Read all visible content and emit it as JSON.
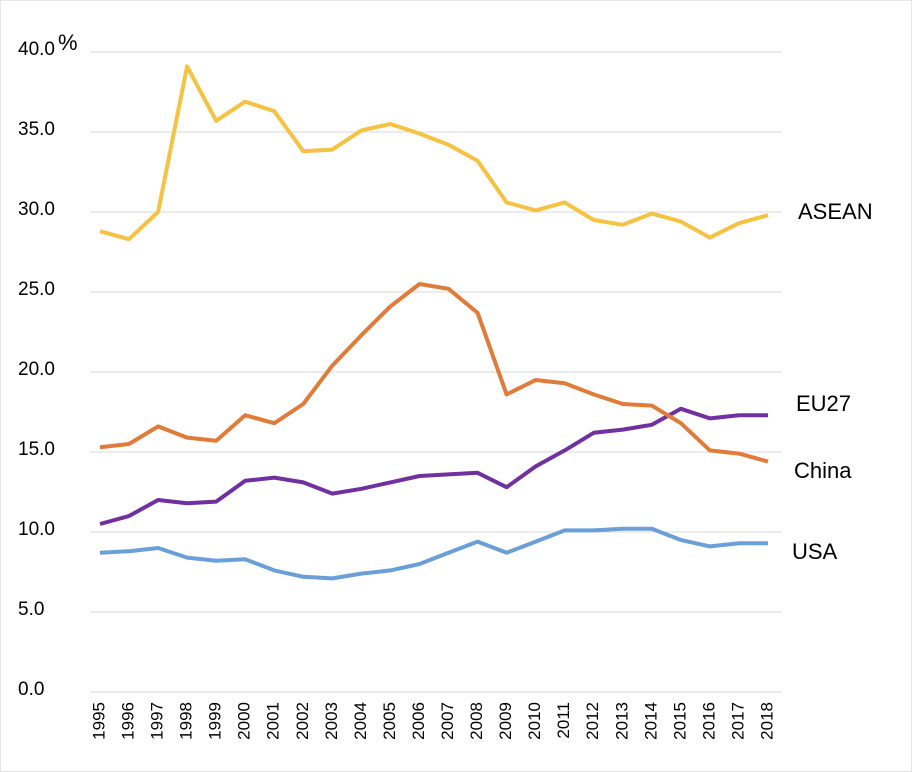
{
  "chart_data": {
    "type": "line",
    "y_unit": "%",
    "categories": [
      "1995",
      "1996",
      "1997",
      "1998",
      "1999",
      "2000",
      "2001",
      "2002",
      "2003",
      "2004",
      "2005",
      "2006",
      "2007",
      "2008",
      "2009",
      "2010",
      "2011",
      "2012",
      "2013",
      "2014",
      "2015",
      "2016",
      "2017",
      "2018"
    ],
    "series": [
      {
        "name": "ASEAN",
        "color": "#f5c242",
        "values": [
          28.8,
          28.3,
          30.0,
          39.1,
          35.7,
          36.9,
          36.3,
          33.8,
          33.9,
          35.1,
          35.5,
          34.9,
          34.2,
          33.2,
          30.6,
          30.1,
          30.6,
          29.5,
          29.2,
          29.9,
          29.4,
          28.4,
          29.3,
          29.8
        ]
      },
      {
        "name": "EU27",
        "color": "#7030a0",
        "values": [
          10.5,
          11.0,
          12.0,
          11.8,
          11.9,
          13.2,
          13.4,
          13.1,
          12.4,
          12.7,
          13.1,
          13.5,
          13.6,
          13.7,
          12.8,
          14.1,
          15.1,
          16.2,
          16.4,
          16.7,
          17.7,
          17.1,
          17.3,
          17.3
        ]
      },
      {
        "name": "China",
        "color": "#e07b39",
        "values": [
          15.3,
          15.5,
          16.6,
          15.9,
          15.7,
          17.3,
          16.8,
          18.0,
          20.4,
          22.3,
          24.1,
          25.5,
          25.2,
          23.7,
          18.6,
          19.5,
          19.3,
          18.6,
          18.0,
          17.9,
          16.8,
          15.1,
          14.9,
          14.4
        ]
      },
      {
        "name": "USA",
        "color": "#6a9fd8",
        "values": [
          8.7,
          8.8,
          9.0,
          8.4,
          8.2,
          8.3,
          7.6,
          7.2,
          7.1,
          7.4,
          7.6,
          8.0,
          8.7,
          9.4,
          8.7,
          9.4,
          10.1,
          10.1,
          10.2,
          10.2,
          9.5,
          9.1,
          9.3,
          9.3
        ]
      }
    ],
    "ylim": [
      0,
      40
    ],
    "yticks": [
      {
        "value": 0,
        "label": "0.0"
      },
      {
        "value": 5,
        "label": "5.0"
      },
      {
        "value": 10,
        "label": "10.0"
      },
      {
        "value": 15,
        "label": "15.0"
      },
      {
        "value": 20,
        "label": "20.0"
      },
      {
        "value": 25,
        "label": "25.0"
      },
      {
        "value": 30,
        "label": "30.0"
      },
      {
        "value": 35,
        "label": "35.0"
      },
      {
        "value": 40,
        "label": "40.0"
      }
    ],
    "grid": true
  }
}
